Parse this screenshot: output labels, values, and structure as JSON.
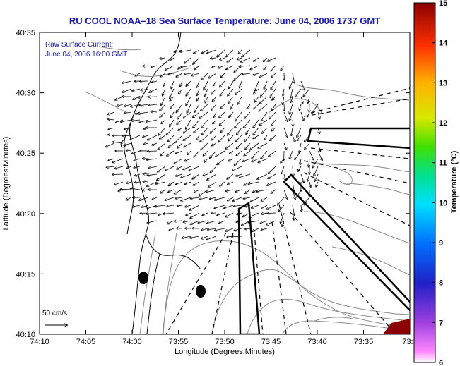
{
  "title": "RU COOL  NOAA–18  Sea Surface Temperature:  June 04, 2006 1737 GMT",
  "annotation": {
    "line1": "Raw Surface Current:",
    "line2": "June 04, 2006 16:00 GMT"
  },
  "scale_label": "50 cm/s",
  "xlabel": "Longitude (Degrees:Minutes)",
  "ylabel": "Latitude (Degrees:Minutes)",
  "x_ticks": [
    "74:10",
    "74:05",
    "74:00",
    "73:55",
    "73:50",
    "73:45",
    "73:40",
    "73:35",
    "73:3"
  ],
  "y_ticks": [
    "40:35",
    "40:30",
    "40:25",
    "40:20",
    "40:15",
    "40:10"
  ],
  "colorbar": {
    "label": "Temperature (°C)",
    "ticks": [
      "15",
      "14",
      "13",
      "12",
      "11",
      "10",
      "9",
      "8",
      "7",
      "6"
    ],
    "range": [
      6,
      15
    ]
  },
  "colors": {
    "title": "#1a1aa6",
    "landmark": "#000000",
    "warm_patch": "#8b0000"
  }
}
